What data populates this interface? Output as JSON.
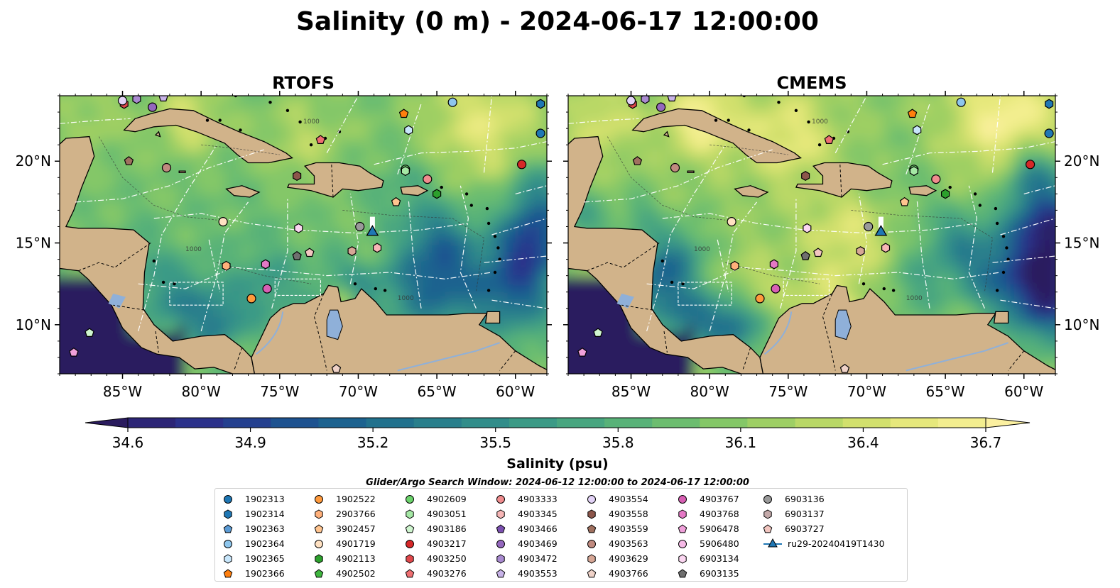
{
  "figure": {
    "title": "Salinity (0 m) - 2024-06-17 12:00:00",
    "search_window": "Glider/Argo Search Window: 2024-06-12 12:00:00 to 2024-06-17 12:00:00"
  },
  "panels": [
    {
      "title": "RTOFS"
    },
    {
      "title": "CMEMS"
    }
  ],
  "colors": {
    "land": "#d1b38a",
    "lake": "#8fb0d9",
    "gridline": "#ffffff",
    "palette": [
      "#2a1b5e",
      "#2c2576",
      "#2b318a",
      "#24408f",
      "#1d5290",
      "#1c628f",
      "#21718d",
      "#297f8c",
      "#318d8a",
      "#3b9a86",
      "#48a680",
      "#58b278",
      "#6cbd6f",
      "#84c767",
      "#9ecf64",
      "#b9d866",
      "#d2e06d",
      "#e6e87c",
      "#f3ee8f",
      "#fbf0a0"
    ]
  },
  "chart_data": {
    "type": "heatmap",
    "variable": "Salinity",
    "depth": "0 m",
    "valid_time": "2024-06-17 12:00:00",
    "panels": [
      "RTOFS",
      "CMEMS"
    ],
    "xlim": [
      -89,
      -58
    ],
    "ylim": [
      7,
      24
    ],
    "x_ticks": [
      -85,
      -80,
      -75,
      -70,
      -65,
      -60
    ],
    "x_tick_labels": [
      "85°W",
      "80°W",
      "75°W",
      "70°W",
      "65°W",
      "60°W"
    ],
    "y_ticks": [
      10,
      15,
      20
    ],
    "y_tick_labels": [
      "10°N",
      "15°N",
      "20°N"
    ],
    "colorbar": {
      "label": "Salinity (psu)",
      "vmin": 34.6,
      "vmax": 36.7,
      "ticks": [
        34.6,
        34.9,
        35.2,
        35.5,
        35.8,
        36.1,
        36.4,
        36.7
      ],
      "tick_labels": [
        "34.6",
        "34.9",
        "35.2",
        "35.5",
        "35.8",
        "36.1",
        "36.4",
        "36.7"
      ],
      "extend": "both"
    },
    "contour_label": "1000",
    "grid": true,
    "legend_location": "bottom-center",
    "markers": [
      {
        "id": "1902313",
        "shape": "circle",
        "color": "#1f77b4",
        "lon": -58.4,
        "lat": 21.7
      },
      {
        "id": "1902314",
        "shape": "hexagon",
        "color": "#1f77b4",
        "lon": -58.4,
        "lat": 23.5
      },
      {
        "id": "1902363",
        "shape": "pentagon",
        "color": "#5b9bd5",
        "lon": null,
        "lat": null
      },
      {
        "id": "1902364",
        "shape": "circle",
        "color": "#8ec6ed",
        "lon": -64.0,
        "lat": 23.6
      },
      {
        "id": "1902365",
        "shape": "hexagon",
        "color": "#c7e6fb",
        "lon": -66.8,
        "lat": 21.9
      },
      {
        "id": "1902366",
        "shape": "pentagon",
        "color": "#ff7f0e",
        "lon": -67.1,
        "lat": 22.9
      },
      {
        "id": "1902522",
        "shape": "circle",
        "color": "#ff9a3c",
        "lon": -76.8,
        "lat": 11.6
      },
      {
        "id": "2903766",
        "shape": "hexagon",
        "color": "#ffb07a",
        "lon": -78.4,
        "lat": 13.6
      },
      {
        "id": "3902457",
        "shape": "pentagon",
        "color": "#ffc48f",
        "lon": -67.6,
        "lat": 17.5
      },
      {
        "id": "4901719",
        "shape": "circle",
        "color": "#ffe1c2",
        "lon": -78.6,
        "lat": 16.3
      },
      {
        "id": "4902113",
        "shape": "hexagon",
        "color": "#2ca02c",
        "lon": -65.0,
        "lat": 18.0
      },
      {
        "id": "4902502",
        "shape": "pentagon",
        "color": "#3fb63f",
        "lon": null,
        "lat": null
      },
      {
        "id": "4902609",
        "shape": "circle",
        "color": "#6bd36b",
        "lon": -67.0,
        "lat": 19.5
      },
      {
        "id": "4903051",
        "shape": "hexagon",
        "color": "#a5e8a5",
        "lon": -67.0,
        "lat": 19.4
      },
      {
        "id": "4903186",
        "shape": "pentagon",
        "color": "#cff5cf",
        "lon": -87.1,
        "lat": 9.5
      },
      {
        "id": "4903217",
        "shape": "circle",
        "color": "#d62728",
        "lon": -59.6,
        "lat": 19.8
      },
      {
        "id": "4903250",
        "shape": "hexagon",
        "color": "#e0474a",
        "lon": -84.9,
        "lat": 23.5
      },
      {
        "id": "4903276",
        "shape": "pentagon",
        "color": "#ef6f71",
        "lon": -72.4,
        "lat": 21.3
      },
      {
        "id": "4903333",
        "shape": "circle",
        "color": "#f08c8e",
        "lon": -65.6,
        "lat": 18.9
      },
      {
        "id": "4903345",
        "shape": "hexagon",
        "color": "#f7b6b6",
        "lon": -68.8,
        "lat": 14.7
      },
      {
        "id": "4903466",
        "shape": "pentagon",
        "color": "#7b4fb0",
        "lon": null,
        "lat": null
      },
      {
        "id": "4903469",
        "shape": "circle",
        "color": "#9467bd",
        "lon": -83.1,
        "lat": 23.3
      },
      {
        "id": "4903472",
        "shape": "hexagon",
        "color": "#a98ad0",
        "lon": -84.1,
        "lat": 23.8
      },
      {
        "id": "4903553",
        "shape": "pentagon",
        "color": "#c8b3e8",
        "lon": -82.4,
        "lat": 23.9
      },
      {
        "id": "4903554",
        "shape": "circle",
        "color": "#e3d3f7",
        "lon": -85.0,
        "lat": 23.7
      },
      {
        "id": "4903558",
        "shape": "hexagon",
        "color": "#8c564b",
        "lon": -73.9,
        "lat": 19.1
      },
      {
        "id": "4903559",
        "shape": "pentagon",
        "color": "#a0705f",
        "lon": -84.6,
        "lat": 20.0
      },
      {
        "id": "4903563",
        "shape": "circle",
        "color": "#c08a7f",
        "lon": -82.2,
        "lat": 19.6
      },
      {
        "id": "4903629",
        "shape": "hexagon",
        "color": "#d7a796",
        "lon": -70.4,
        "lat": 14.5
      },
      {
        "id": "4903766",
        "shape": "pentagon",
        "color": "#efd2c8",
        "lon": -71.4,
        "lat": 7.3
      },
      {
        "id": "4903767",
        "shape": "circle",
        "color": "#d85fb4",
        "lon": -75.8,
        "lat": 12.2
      },
      {
        "id": "4903768",
        "shape": "hexagon",
        "color": "#e478c5",
        "lon": -75.9,
        "lat": 13.7
      },
      {
        "id": "5906478",
        "shape": "pentagon",
        "color": "#f0a0da",
        "lon": -88.1,
        "lat": 8.3
      },
      {
        "id": "5906480",
        "shape": "circle",
        "color": "#f5b9e6",
        "lon": null,
        "lat": null
      },
      {
        "id": "6903134",
        "shape": "hexagon",
        "color": "#fbd6f1",
        "lon": -73.8,
        "lat": 15.9
      },
      {
        "id": "6903135",
        "shape": "pentagon",
        "color": "#6f6f6f",
        "lon": -73.9,
        "lat": 14.2
      },
      {
        "id": "6903136",
        "shape": "circle",
        "color": "#9a9a9a",
        "lon": -69.9,
        "lat": 16.0
      },
      {
        "id": "6903137",
        "shape": "hexagon",
        "color": "#c4aaaa",
        "lon": null,
        "lat": null
      },
      {
        "id": "6903727",
        "shape": "pentagon",
        "color": "#f2c6c0",
        "lon": -73.1,
        "lat": 14.4
      }
    ],
    "glider": {
      "id": "ru29-20240419T1430",
      "shape": "triangle",
      "color": "#1f77b4",
      "lon": -69.1,
      "lat": 15.7,
      "track_lon": [
        -69.1,
        -69.1
      ],
      "track_lat": [
        15.7,
        16.6
      ]
    }
  }
}
